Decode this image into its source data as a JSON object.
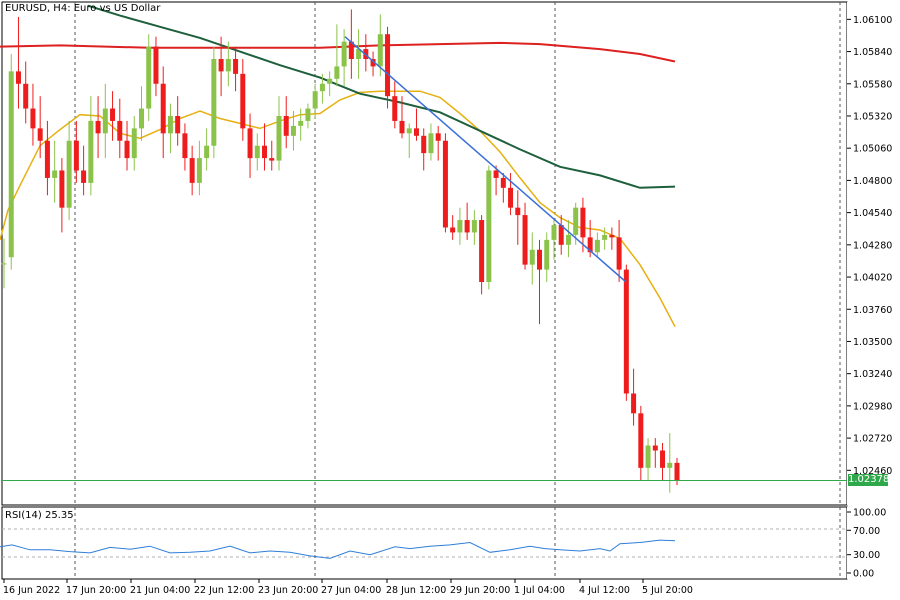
{
  "header": {
    "symbol": "EURUSD",
    "timeframe": "H4",
    "description": "Euro vs US Dollar",
    "title": "EURUSD, H4:  Euro vs US Dollar"
  },
  "current_price": "1.02378",
  "rsi_header": "RSI(14) 25.35",
  "colors": {
    "bull": "#8bc34a",
    "bear": "#ee1c1c",
    "ma_fast": "#e6b012",
    "ma_mid": "#1e5f3c",
    "ma_slow": "#dd2020",
    "trendline": "#3a6fd8",
    "rsi": "#2f7ed8",
    "price_line": "#2ea84a"
  },
  "chart_data": {
    "type": "candlestick",
    "ylim": [
      1.0218,
      1.0624
    ],
    "y_ticks": [
      "1.06100",
      "1.05840",
      "1.05580",
      "1.05320",
      "1.05060",
      "1.04800",
      "1.04540",
      "1.04280",
      "1.04020",
      "1.03760",
      "1.03500",
      "1.03240",
      "1.02980",
      "1.02720",
      "1.02460"
    ],
    "x_ticks": [
      "16 Jun 2022",
      "17 Jun 20:00",
      "21 Jun 04:00",
      "22 Jun 12:00",
      "23 Jun 20:00",
      "27 Jun 04:00",
      "28 Jun 12:00",
      "29 Jun 20:00",
      "1 Jul 04:00",
      "4 Jul 12:00",
      "5 Jul 20:00"
    ],
    "candles": [
      [
        1.0413,
        1.0433,
        1.0393,
        1.0413
      ],
      [
        1.0418,
        1.0582,
        1.0408,
        1.0568
      ],
      [
        1.0568,
        1.0612,
        1.0538,
        1.0558
      ],
      [
        1.0558,
        1.0576,
        1.0526,
        1.0538
      ],
      [
        1.0538,
        1.0558,
        1.0508,
        1.0522
      ],
      [
        1.0522,
        1.0548,
        1.0498,
        1.0512
      ],
      [
        1.0512,
        1.0528,
        1.0468,
        1.0482
      ],
      [
        1.0482,
        1.0512,
        1.0462,
        1.0488
      ],
      [
        1.0488,
        1.0498,
        1.0438,
        1.0458
      ],
      [
        1.0458,
        1.0528,
        1.0448,
        1.0512
      ],
      [
        1.0512,
        1.0528,
        1.0478,
        1.0488
      ],
      [
        1.0488,
        1.0508,
        1.0468,
        1.0478
      ],
      [
        1.0478,
        1.0548,
        1.0468,
        1.0528
      ],
      [
        1.0528,
        1.0548,
        1.0498,
        1.0518
      ],
      [
        1.0518,
        1.0558,
        1.0498,
        1.0538
      ],
      [
        1.0538,
        1.0552,
        1.0512,
        1.0528
      ],
      [
        1.0528,
        1.0546,
        1.0498,
        1.0512
      ],
      [
        1.0512,
        1.0528,
        1.0488,
        1.0498
      ],
      [
        1.0498,
        1.0532,
        1.0488,
        1.0522
      ],
      [
        1.0522,
        1.0556,
        1.0512,
        1.0538
      ],
      [
        1.0538,
        1.0598,
        1.0528,
        1.0588
      ],
      [
        1.0588,
        1.0596,
        1.0548,
        1.0558
      ],
      [
        1.0558,
        1.0572,
        1.0498,
        1.0518
      ],
      [
        1.0518,
        1.0542,
        1.0502,
        1.0532
      ],
      [
        1.0532,
        1.0548,
        1.0508,
        1.0518
      ],
      [
        1.0518,
        1.0526,
        1.0488,
        1.0498
      ],
      [
        1.0498,
        1.0508,
        1.0468,
        1.0478
      ],
      [
        1.0478,
        1.0512,
        1.0468,
        1.0498
      ],
      [
        1.0498,
        1.0522,
        1.0488,
        1.0508
      ],
      [
        1.0508,
        1.0588,
        1.0498,
        1.0578
      ],
      [
        1.0578,
        1.0596,
        1.0548,
        1.0568
      ],
      [
        1.0568,
        1.0592,
        1.0556,
        1.0578
      ],
      [
        1.0578,
        1.0588,
        1.0552,
        1.0566
      ],
      [
        1.0566,
        1.0578,
        1.0512,
        1.0522
      ],
      [
        1.0522,
        1.0534,
        1.0482,
        1.0498
      ],
      [
        1.0498,
        1.0518,
        1.0488,
        1.0508
      ],
      [
        1.0508,
        1.0526,
        1.0488,
        1.0498
      ],
      [
        1.0498,
        1.0512,
        1.0488,
        1.0496
      ],
      [
        1.0496,
        1.0548,
        1.0488,
        1.0532
      ],
      [
        1.0532,
        1.0548,
        1.0506,
        1.0516
      ],
      [
        1.0516,
        1.0536,
        1.0504,
        1.0524
      ],
      [
        1.0524,
        1.0538,
        1.0512,
        1.0528
      ],
      [
        1.0528,
        1.0542,
        1.0522,
        1.0538
      ],
      [
        1.0538,
        1.0558,
        1.053,
        1.0552
      ],
      [
        1.0552,
        1.0566,
        1.0542,
        1.0558
      ],
      [
        1.0558,
        1.0568,
        1.0548,
        1.0562
      ],
      [
        1.0562,
        1.0606,
        1.0556,
        1.0572
      ],
      [
        1.0572,
        1.0602,
        1.0556,
        1.0592
      ],
      [
        1.0592,
        1.0618,
        1.0562,
        1.0578
      ],
      [
        1.0578,
        1.0602,
        1.0562,
        1.0586
      ],
      [
        1.0586,
        1.0598,
        1.0568,
        1.0578
      ],
      [
        1.0578,
        1.0584,
        1.0564,
        1.0572
      ],
      [
        1.0572,
        1.0614,
        1.0564,
        1.0598
      ],
      [
        1.0598,
        1.0604,
        1.0538,
        1.0548
      ],
      [
        1.0548,
        1.056,
        1.0522,
        1.0528
      ],
      [
        1.0528,
        1.0548,
        1.0514,
        1.0518
      ],
      [
        1.0518,
        1.0526,
        1.0498,
        1.0522
      ],
      [
        1.0522,
        1.0538,
        1.0512,
        1.0516
      ],
      [
        1.0516,
        1.0522,
        1.0488,
        1.0502
      ],
      [
        1.0502,
        1.0526,
        1.0496,
        1.0518
      ],
      [
        1.0518,
        1.0524,
        1.0496,
        1.0512
      ],
      [
        1.0512,
        1.0518,
        1.0438,
        1.0442
      ],
      [
        1.0442,
        1.0452,
        1.0432,
        1.0438
      ],
      [
        1.0438,
        1.0458,
        1.0428,
        1.0448
      ],
      [
        1.0448,
        1.0462,
        1.0432,
        1.0438
      ],
      [
        1.0438,
        1.0456,
        1.0428,
        1.0448
      ],
      [
        1.0448,
        1.0452,
        1.0388,
        1.0398
      ],
      [
        1.0398,
        1.0492,
        1.0392,
        1.0488
      ],
      [
        1.0488,
        1.0492,
        1.0468,
        1.0482
      ],
      [
        1.0482,
        1.0486,
        1.0462,
        1.0474
      ],
      [
        1.0474,
        1.0486,
        1.0452,
        1.0458
      ],
      [
        1.0458,
        1.0472,
        1.0428,
        1.0452
      ],
      [
        1.0452,
        1.0462,
        1.0408,
        1.0412
      ],
      [
        1.0412,
        1.0438,
        1.0396,
        1.0424
      ],
      [
        1.0424,
        1.0432,
        1.0364,
        1.0408
      ],
      [
        1.0408,
        1.0438,
        1.0398,
        1.0432
      ],
      [
        1.0432,
        1.0448,
        1.0416,
        1.0444
      ],
      [
        1.0444,
        1.0452,
        1.042,
        1.0428
      ],
      [
        1.0428,
        1.0448,
        1.0418,
        1.0436
      ],
      [
        1.0436,
        1.0462,
        1.0428,
        1.0458
      ],
      [
        1.0458,
        1.0466,
        1.0422,
        1.0434
      ],
      [
        1.0434,
        1.0448,
        1.0418,
        1.0422
      ],
      [
        1.0422,
        1.0438,
        1.0418,
        1.0432
      ],
      [
        1.0432,
        1.0442,
        1.0424,
        1.0436
      ],
      [
        1.0436,
        1.0442,
        1.0424,
        1.0434
      ],
      [
        1.0434,
        1.0448,
        1.0398,
        1.0408
      ],
      [
        1.0408,
        1.0412,
        1.0302,
        1.0308
      ],
      [
        1.0308,
        1.0328,
        1.0282,
        1.0292
      ],
      [
        1.0292,
        1.0298,
        1.0238,
        1.0248
      ],
      [
        1.0248,
        1.0272,
        1.0238,
        1.0266
      ],
      [
        1.0266,
        1.0272,
        1.0248,
        1.0262
      ],
      [
        1.0262,
        1.0268,
        1.0238,
        1.0248
      ],
      [
        1.0248,
        1.0276,
        1.0228,
        1.0252
      ],
      [
        1.0252,
        1.0256,
        1.0234,
        1.0238
      ]
    ],
    "series": [
      {
        "name": "MA fast",
        "color": "#e6b012",
        "values": [
          [
            0,
            1.0432
          ],
          [
            8,
            1.0456
          ],
          [
            20,
            1.0476
          ],
          [
            40,
            1.0508
          ],
          [
            60,
            1.0521
          ],
          [
            80,
            1.0533
          ],
          [
            100,
            1.0532
          ],
          [
            120,
            1.0518
          ],
          [
            140,
            1.0514
          ],
          [
            160,
            1.0521
          ],
          [
            180,
            1.053
          ],
          [
            200,
            1.0536
          ],
          [
            220,
            1.053
          ],
          [
            240,
            1.0526
          ],
          [
            260,
            1.0522
          ],
          [
            280,
            1.0528
          ],
          [
            300,
            1.0533
          ],
          [
            320,
            1.0534
          ],
          [
            340,
            1.0545
          ],
          [
            360,
            1.0551
          ],
          [
            380,
            1.0552
          ],
          [
            400,
            1.0552
          ],
          [
            420,
            1.0552
          ],
          [
            440,
            1.0547
          ],
          [
            460,
            1.0534
          ],
          [
            480,
            1.052
          ],
          [
            500,
            1.0503
          ],
          [
            520,
            1.0482
          ],
          [
            540,
            1.0462
          ],
          [
            560,
            1.045
          ],
          [
            580,
            1.0442
          ],
          [
            600,
            1.044
          ],
          [
            620,
            1.0433
          ],
          [
            640,
            1.0412
          ],
          [
            660,
            1.0385
          ],
          [
            675,
            1.0362
          ]
        ]
      },
      {
        "name": "MA mid",
        "color": "#1e5f3c",
        "values": [
          [
            88,
            1.0621
          ],
          [
            120,
            1.0613
          ],
          [
            160,
            1.0604
          ],
          [
            200,
            1.0595
          ],
          [
            240,
            1.0584
          ],
          [
            280,
            1.0573
          ],
          [
            320,
            1.0563
          ],
          [
            360,
            1.055
          ],
          [
            400,
            1.0543
          ],
          [
            440,
            1.0535
          ],
          [
            480,
            1.052
          ],
          [
            520,
            1.0505
          ],
          [
            560,
            1.0491
          ],
          [
            600,
            1.0484
          ],
          [
            640,
            1.0474
          ],
          [
            675,
            1.0475
          ]
        ]
      },
      {
        "name": "MA slow",
        "color": "#dd2020",
        "values": [
          [
            0,
            1.0588
          ],
          [
            60,
            1.0589
          ],
          [
            150,
            1.0587
          ],
          [
            240,
            1.0587
          ],
          [
            320,
            1.0587
          ],
          [
            380,
            1.0589
          ],
          [
            440,
            1.059
          ],
          [
            500,
            1.0591
          ],
          [
            540,
            1.059
          ],
          [
            600,
            1.0586
          ],
          [
            640,
            1.0582
          ],
          [
            675,
            1.0576
          ]
        ]
      },
      {
        "name": "Trendline",
        "color": "#3a6fd8",
        "values": [
          [
            345,
            1.0596
          ],
          [
            626,
            1.0398
          ]
        ]
      }
    ],
    "rsi": {
      "ylim": [
        0,
        100
      ],
      "y_ticks": [
        "100.00",
        "70.00",
        "30.00",
        "0.00"
      ],
      "value": 25.35,
      "values": [
        [
          0,
          43
        ],
        [
          12,
          46
        ],
        [
          30,
          38
        ],
        [
          50,
          38
        ],
        [
          70,
          35
        ],
        [
          90,
          33
        ],
        [
          110,
          42
        ],
        [
          130,
          39
        ],
        [
          150,
          44
        ],
        [
          170,
          33
        ],
        [
          190,
          34
        ],
        [
          210,
          36
        ],
        [
          230,
          44
        ],
        [
          250,
          33
        ],
        [
          270,
          36
        ],
        [
          290,
          34
        ],
        [
          310,
          28
        ],
        [
          330,
          24
        ],
        [
          350,
          36
        ],
        [
          370,
          30
        ],
        [
          380,
          35
        ],
        [
          395,
          43
        ],
        [
          410,
          40
        ],
        [
          430,
          44
        ],
        [
          450,
          46
        ],
        [
          470,
          50
        ],
        [
          490,
          34
        ],
        [
          510,
          38
        ],
        [
          530,
          44
        ],
        [
          545,
          40
        ],
        [
          560,
          38
        ],
        [
          580,
          36
        ],
        [
          600,
          40
        ],
        [
          610,
          36
        ],
        [
          620,
          48
        ],
        [
          640,
          50
        ],
        [
          660,
          54
        ],
        [
          675,
          53
        ]
      ]
    }
  }
}
